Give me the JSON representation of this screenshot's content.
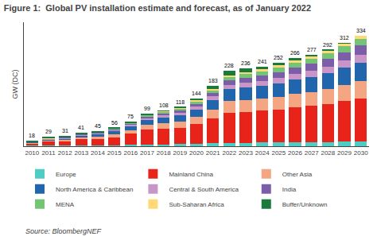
{
  "chart_data": {
    "type": "bar",
    "title": "Figure 1:  Global PV installation estimate and forecast, as of January 2022",
    "ylabel": "GW (DC)",
    "categories": [
      "2010",
      "2011",
      "2012",
      "2013",
      "2014",
      "2015",
      "2016",
      "2017",
      "2018",
      "2019",
      "2020",
      "2021",
      "2022",
      "2023",
      "2024",
      "2025",
      "2026",
      "2027",
      "2028",
      "2029",
      "2030"
    ],
    "series": [
      {
        "name": "Europe",
        "color": "#4ecdc4",
        "values": [
          2.5,
          3.5,
          3.0,
          3.5,
          3.0,
          3.5,
          4.5,
          5.5,
          6.0,
          6.5,
          7.5,
          8.5,
          10.0,
          10.5,
          11.0,
          11.5,
          12.0,
          12.5,
          13.0,
          14.0,
          15.0
        ]
      },
      {
        "name": "Mainland China",
        "color": "#e8231a",
        "values": [
          6.5,
          11.0,
          12.0,
          17.0,
          18.5,
          24.0,
          33.0,
          44.0,
          47.0,
          49.5,
          60.0,
          75.0,
          92.0,
          94.0,
          96.0,
          100.0,
          105.0,
          109.0,
          114.0,
          122.0,
          130.0
        ]
      },
      {
        "name": "Other Asia",
        "color": "#f4a582",
        "values": [
          1.5,
          3.0,
          4.0,
          5.5,
          7.0,
          8.5,
          11.0,
          14.5,
          16.0,
          18.0,
          21.0,
          27.0,
          34.0,
          35.0,
          36.5,
          38.5,
          41.0,
          43.0,
          46.0,
          49.5,
          53.0
        ]
      },
      {
        "name": "North America & Caribbean",
        "color": "#2166ac",
        "values": [
          2.0,
          4.0,
          5.0,
          7.0,
          8.5,
          10.0,
          12.5,
          16.0,
          18.0,
          19.5,
          23.0,
          29.0,
          36.0,
          37.5,
          39.0,
          41.0,
          43.5,
          45.5,
          48.0,
          51.5,
          55.0
        ]
      },
      {
        "name": "Central & South America",
        "color": "#c994c7",
        "values": [
          0.5,
          1.0,
          1.5,
          2.0,
          2.5,
          3.0,
          4.0,
          5.5,
          6.5,
          7.5,
          9.0,
          11.0,
          14.0,
          15.0,
          15.5,
          16.5,
          17.5,
          18.5,
          20.0,
          21.5,
          23.0
        ]
      },
      {
        "name": "India",
        "color": "#7b5ea7",
        "values": [
          0.5,
          1.0,
          1.0,
          1.5,
          1.5,
          2.0,
          3.0,
          4.5,
          5.5,
          6.5,
          8.0,
          10.0,
          13.0,
          14.0,
          15.0,
          17.0,
          19.0,
          21.0,
          23.0,
          26.0,
          29.0
        ]
      },
      {
        "name": "MENA",
        "color": "#74c476",
        "values": [
          0.3,
          0.5,
          0.7,
          1.0,
          1.5,
          2.0,
          3.0,
          4.5,
          5.0,
          5.5,
          7.0,
          9.0,
          11.0,
          12.0,
          13.0,
          14.0,
          15.0,
          16.0,
          17.0,
          18.5,
          20.0
        ]
      },
      {
        "name": "Sub-Saharan Africa",
        "color": "#fed976",
        "values": [
          0.2,
          0.3,
          0.4,
          0.5,
          0.5,
          0.7,
          1.0,
          1.5,
          2.0,
          2.5,
          3.0,
          4.0,
          5.0,
          5.5,
          6.0,
          6.5,
          7.0,
          7.5,
          8.0,
          8.5,
          9.0
        ]
      },
      {
        "name": "Buffer/Unknown",
        "color": "#1a7a3c",
        "values": [
          4.0,
          4.7,
          3.4,
          3.0,
          2.0,
          2.3,
          3.0,
          3.5,
          2.0,
          2.5,
          5.5,
          9.5,
          13.0,
          12.5,
          9.0,
          7.0,
          6.0,
          4.0,
          3.0,
          0.5,
          0.0
        ]
      }
    ],
    "stacked": true,
    "totals": [
      18,
      29,
      31,
      41,
      45,
      56,
      75,
      99,
      108,
      118,
      144,
      183,
      228,
      236,
      241,
      252,
      266,
      277,
      292,
      312,
      334
    ],
    "ylim": [
      0,
      375
    ],
    "tick_labels": "x",
    "grid": false,
    "legend": "bottom",
    "annotations": [
      {
        "text": "Source: BloombergNEF"
      }
    ]
  }
}
